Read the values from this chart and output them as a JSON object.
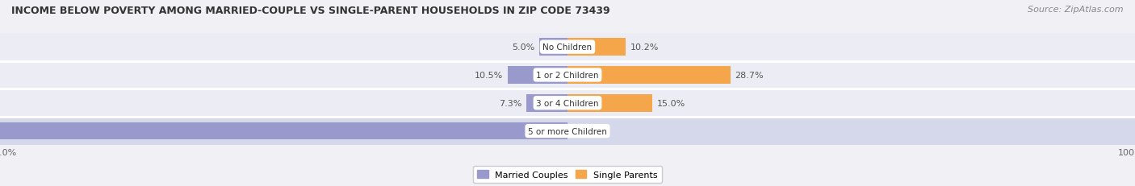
{
  "title": "INCOME BELOW POVERTY AMONG MARRIED-COUPLE VS SINGLE-PARENT HOUSEHOLDS IN ZIP CODE 73439",
  "source": "Source: ZipAtlas.com",
  "categories": [
    "No Children",
    "1 or 2 Children",
    "3 or 4 Children",
    "5 or more Children"
  ],
  "married_values": [
    5.0,
    10.5,
    7.3,
    100.0
  ],
  "single_values": [
    10.2,
    28.7,
    15.0,
    0.0
  ],
  "married_color": "#9999cc",
  "single_color": "#f5a54a",
  "row_bg_colors_light": "#ecedf4",
  "row_bg_color_dark": "#d5d8ea",
  "married_label": "Married Couples",
  "single_label": "Single Parents",
  "title_fontsize": 9,
  "label_fontsize": 8,
  "tick_fontsize": 8,
  "source_fontsize": 8,
  "bg_color": "#f0f0f5"
}
